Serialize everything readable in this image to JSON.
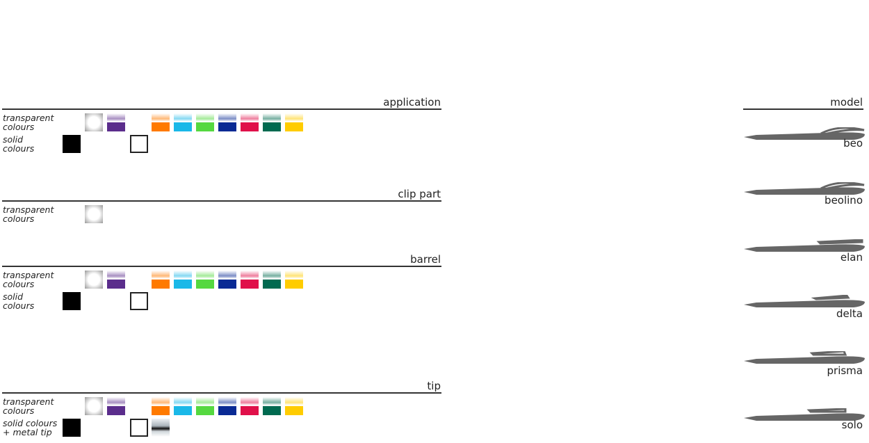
{
  "sections": [
    {
      "title": "application",
      "rows": [
        {
          "label": [
            "transparent",
            "colours"
          ]
        },
        {
          "label": [
            "solid",
            "colours"
          ]
        }
      ]
    },
    {
      "title": "clip part",
      "rows": [
        {
          "label": [
            "transparent",
            "colours"
          ]
        }
      ]
    },
    {
      "title": "barrel",
      "rows": [
        {
          "label": [
            "transparent",
            "colours"
          ]
        },
        {
          "label": [
            "solid",
            "colours"
          ]
        }
      ]
    },
    {
      "title": "tip",
      "rows": [
        {
          "label": [
            "transparent",
            "colours"
          ]
        },
        {
          "label": [
            "solid colours",
            "+ metal tip"
          ]
        }
      ]
    }
  ],
  "model": {
    "title": "model",
    "items": [
      "beo",
      "beolino",
      "elan",
      "delta",
      "prisma",
      "solo"
    ]
  }
}
